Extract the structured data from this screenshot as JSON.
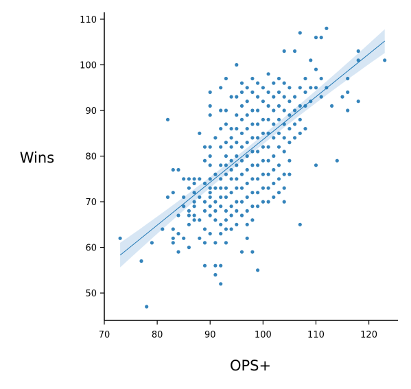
{
  "chart_data": {
    "type": "scatter",
    "xlabel": "OPS+",
    "ylabel": "Wins",
    "xlim": [
      70,
      125.5
    ],
    "ylim": [
      44,
      111.5
    ],
    "xticks": [
      70,
      80,
      90,
      100,
      110,
      120
    ],
    "yticks": [
      50,
      60,
      70,
      80,
      90,
      100,
      110
    ],
    "grid": false,
    "colors": {
      "points": "#1f77b4",
      "band": "#c6dbef"
    },
    "regression": {
      "x": [
        73,
        123
      ],
      "y": [
        58.3,
        105.2
      ],
      "ci_halfwidth": [
        2.7,
        1.0,
        2.6
      ]
    },
    "points": [
      [
        73,
        62
      ],
      [
        77,
        57
      ],
      [
        78,
        47
      ],
      [
        79,
        61
      ],
      [
        81,
        64
      ],
      [
        82,
        88
      ],
      [
        82,
        71
      ],
      [
        83,
        77
      ],
      [
        83,
        72
      ],
      [
        83,
        64
      ],
      [
        83,
        62
      ],
      [
        83,
        61
      ],
      [
        84,
        77
      ],
      [
        84,
        67
      ],
      [
        84,
        63
      ],
      [
        84,
        59
      ],
      [
        85,
        75
      ],
      [
        85,
        71
      ],
      [
        85,
        69
      ],
      [
        85,
        62
      ],
      [
        86,
        75
      ],
      [
        86,
        73
      ],
      [
        86,
        68
      ],
      [
        86,
        67
      ],
      [
        86,
        65
      ],
      [
        86,
        60
      ],
      [
        87,
        75
      ],
      [
        87,
        74
      ],
      [
        87,
        72
      ],
      [
        87,
        70
      ],
      [
        87,
        69
      ],
      [
        87,
        67
      ],
      [
        87,
        66
      ],
      [
        88,
        85
      ],
      [
        88,
        75
      ],
      [
        88,
        71
      ],
      [
        88,
        66
      ],
      [
        88,
        62
      ],
      [
        89,
        82
      ],
      [
        89,
        79
      ],
      [
        89,
        74
      ],
      [
        89,
        70
      ],
      [
        89,
        68
      ],
      [
        89,
        56
      ],
      [
        89,
        61
      ],
      [
        89,
        64
      ],
      [
        90,
        94
      ],
      [
        90,
        91
      ],
      [
        90,
        89
      ],
      [
        90,
        82
      ],
      [
        90,
        80
      ],
      [
        90,
        78
      ],
      [
        90,
        75
      ],
      [
        90,
        73
      ],
      [
        90,
        72
      ],
      [
        90,
        71
      ],
      [
        90,
        69
      ],
      [
        90,
        67
      ],
      [
        90,
        63
      ],
      [
        91,
        84
      ],
      [
        91,
        76
      ],
      [
        91,
        73
      ],
      [
        91,
        70
      ],
      [
        91,
        68
      ],
      [
        91,
        66
      ],
      [
        91,
        61
      ],
      [
        91,
        56
      ],
      [
        91,
        54
      ],
      [
        92,
        95
      ],
      [
        92,
        90
      ],
      [
        92,
        86
      ],
      [
        92,
        82
      ],
      [
        92,
        78
      ],
      [
        92,
        75
      ],
      [
        92,
        73
      ],
      [
        92,
        71
      ],
      [
        92,
        69
      ],
      [
        92,
        65
      ],
      [
        92,
        63
      ],
      [
        92,
        56
      ],
      [
        92,
        52
      ],
      [
        93,
        97
      ],
      [
        93,
        90
      ],
      [
        93,
        87
      ],
      [
        93,
        83
      ],
      [
        93,
        80
      ],
      [
        93,
        78
      ],
      [
        93,
        76
      ],
      [
        93,
        73
      ],
      [
        93,
        71
      ],
      [
        93,
        68
      ],
      [
        93,
        66
      ],
      [
        93,
        64
      ],
      [
        93,
        61
      ],
      [
        94,
        93
      ],
      [
        94,
        86
      ],
      [
        94,
        84
      ],
      [
        94,
        82
      ],
      [
        94,
        79
      ],
      [
        94,
        77
      ],
      [
        94,
        75
      ],
      [
        94,
        72
      ],
      [
        94,
        69
      ],
      [
        94,
        67
      ],
      [
        94,
        64
      ],
      [
        95,
        100
      ],
      [
        95,
        93
      ],
      [
        95,
        89
      ],
      [
        95,
        86
      ],
      [
        95,
        83
      ],
      [
        95,
        80
      ],
      [
        95,
        78
      ],
      [
        95,
        75
      ],
      [
        95,
        73
      ],
      [
        95,
        70
      ],
      [
        95,
        68
      ],
      [
        95,
        65
      ],
      [
        96,
        96
      ],
      [
        96,
        94
      ],
      [
        96,
        91
      ],
      [
        96,
        88
      ],
      [
        96,
        85
      ],
      [
        96,
        82
      ],
      [
        96,
        79
      ],
      [
        96,
        76
      ],
      [
        96,
        73
      ],
      [
        96,
        70
      ],
      [
        96,
        67
      ],
      [
        96,
        59
      ],
      [
        97,
        95
      ],
      [
        97,
        92
      ],
      [
        97,
        89
      ],
      [
        97,
        86
      ],
      [
        97,
        83
      ],
      [
        97,
        80
      ],
      [
        97,
        77
      ],
      [
        97,
        74
      ],
      [
        97,
        71
      ],
      [
        97,
        68
      ],
      [
        97,
        65
      ],
      [
        97,
        62
      ],
      [
        98,
        97
      ],
      [
        98,
        94
      ],
      [
        98,
        90
      ],
      [
        98,
        87
      ],
      [
        98,
        84
      ],
      [
        98,
        81
      ],
      [
        98,
        78
      ],
      [
        98,
        75
      ],
      [
        98,
        72
      ],
      [
        98,
        69
      ],
      [
        98,
        66
      ],
      [
        98,
        59
      ],
      [
        99,
        96
      ],
      [
        99,
        93
      ],
      [
        99,
        90
      ],
      [
        99,
        87
      ],
      [
        99,
        84
      ],
      [
        99,
        81
      ],
      [
        99,
        78
      ],
      [
        99,
        75
      ],
      [
        99,
        72
      ],
      [
        99,
        69
      ],
      [
        99,
        55
      ],
      [
        100,
        95
      ],
      [
        100,
        92
      ],
      [
        100,
        88
      ],
      [
        100,
        85
      ],
      [
        100,
        82
      ],
      [
        100,
        79
      ],
      [
        100,
        76
      ],
      [
        100,
        73
      ],
      [
        100,
        70
      ],
      [
        101,
        98
      ],
      [
        101,
        94
      ],
      [
        101,
        91
      ],
      [
        101,
        88
      ],
      [
        101,
        85
      ],
      [
        101,
        82
      ],
      [
        101,
        79
      ],
      [
        101,
        76
      ],
      [
        101,
        73
      ],
      [
        101,
        70
      ],
      [
        102,
        96
      ],
      [
        102,
        93
      ],
      [
        102,
        90
      ],
      [
        102,
        87
      ],
      [
        102,
        84
      ],
      [
        102,
        80
      ],
      [
        102,
        77
      ],
      [
        102,
        74
      ],
      [
        102,
        71
      ],
      [
        103,
        97
      ],
      [
        103,
        94
      ],
      [
        103,
        91
      ],
      [
        103,
        88
      ],
      [
        103,
        85
      ],
      [
        103,
        82
      ],
      [
        103,
        78
      ],
      [
        103,
        75
      ],
      [
        103,
        72
      ],
      [
        104,
        103
      ],
      [
        104,
        96
      ],
      [
        104,
        93
      ],
      [
        104,
        90
      ],
      [
        104,
        87
      ],
      [
        104,
        84
      ],
      [
        104,
        81
      ],
      [
        104,
        76
      ],
      [
        104,
        73
      ],
      [
        104,
        70
      ],
      [
        105,
        95
      ],
      [
        105,
        92
      ],
      [
        105,
        89
      ],
      [
        105,
        86
      ],
      [
        105,
        83
      ],
      [
        105,
        79
      ],
      [
        105,
        76
      ],
      [
        106,
        103
      ],
      [
        106,
        93
      ],
      [
        106,
        90
      ],
      [
        106,
        87
      ],
      [
        106,
        84
      ],
      [
        107,
        107
      ],
      [
        107,
        95
      ],
      [
        107,
        91
      ],
      [
        107,
        88
      ],
      [
        107,
        85
      ],
      [
        107,
        65
      ],
      [
        108,
        97
      ],
      [
        108,
        94
      ],
      [
        108,
        91
      ],
      [
        108,
        86
      ],
      [
        109,
        101
      ],
      [
        109,
        95
      ],
      [
        109,
        92
      ],
      [
        110,
        106
      ],
      [
        110,
        99
      ],
      [
        110,
        95
      ],
      [
        110,
        78
      ],
      [
        111,
        106
      ],
      [
        111,
        97
      ],
      [
        111,
        93
      ],
      [
        112,
        108
      ],
      [
        112,
        95
      ],
      [
        113,
        91
      ],
      [
        114,
        79
      ],
      [
        115,
        93
      ],
      [
        116,
        97
      ],
      [
        116,
        94
      ],
      [
        116,
        90
      ],
      [
        118,
        103
      ],
      [
        118,
        101
      ],
      [
        118,
        92
      ],
      [
        123,
        101
      ]
    ]
  }
}
